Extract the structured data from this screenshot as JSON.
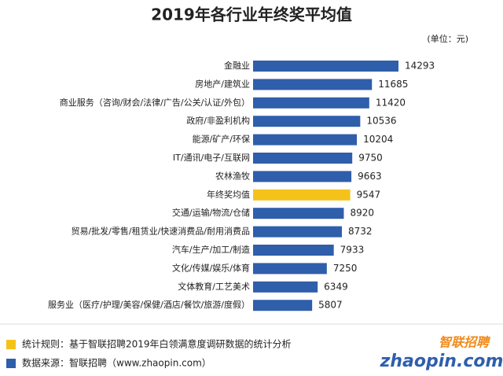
{
  "chart_data": {
    "type": "barh",
    "title": "2019年各行业年终奖平均值",
    "unit": "(单位：元)",
    "categories": [
      "金融业",
      "房地产/建筑业",
      "商业服务（咨询/财会/法律/广告/公关/认证/外包）",
      "政府/非盈利机构",
      "能源/矿产/环保",
      "IT/通讯/电子/互联网",
      "农林渔牧",
      "年终奖均值",
      "交通/运输/物流/仓储",
      "贸易/批发/零售/租赁业/快速消费品/耐用消费品",
      "汽车/生产/加工/制造",
      "文化/传媒/娱乐/体育",
      "文体教育/工艺美术",
      "服务业（医疗/护理/美容/保健/酒店/餐饮/旅游/度假）"
    ],
    "values": [
      14293,
      11685,
      11420,
      10536,
      10204,
      9750,
      9663,
      9547,
      8920,
      8732,
      7933,
      7250,
      6349,
      5807
    ],
    "colors": [
      "#2f5eab",
      "#2f5eab",
      "#2f5eab",
      "#2f5eab",
      "#2f5eab",
      "#2f5eab",
      "#2f5eab",
      "#f5c21a",
      "#2f5eab",
      "#2f5eab",
      "#2f5eab",
      "#2f5eab",
      "#2f5eab",
      "#2f5eab"
    ],
    "notes": [
      {
        "text": "统计规则：基于智联招聘2019年白领满意度调研数据的统计分析",
        "color": "#f5c21a"
      },
      {
        "text": "数据来源：智联招聘（www.zhaopin.com）",
        "color": "#2f5eab"
      }
    ],
    "logo": {
      "name": "智联招聘",
      "site": "zhaopin.com"
    }
  }
}
